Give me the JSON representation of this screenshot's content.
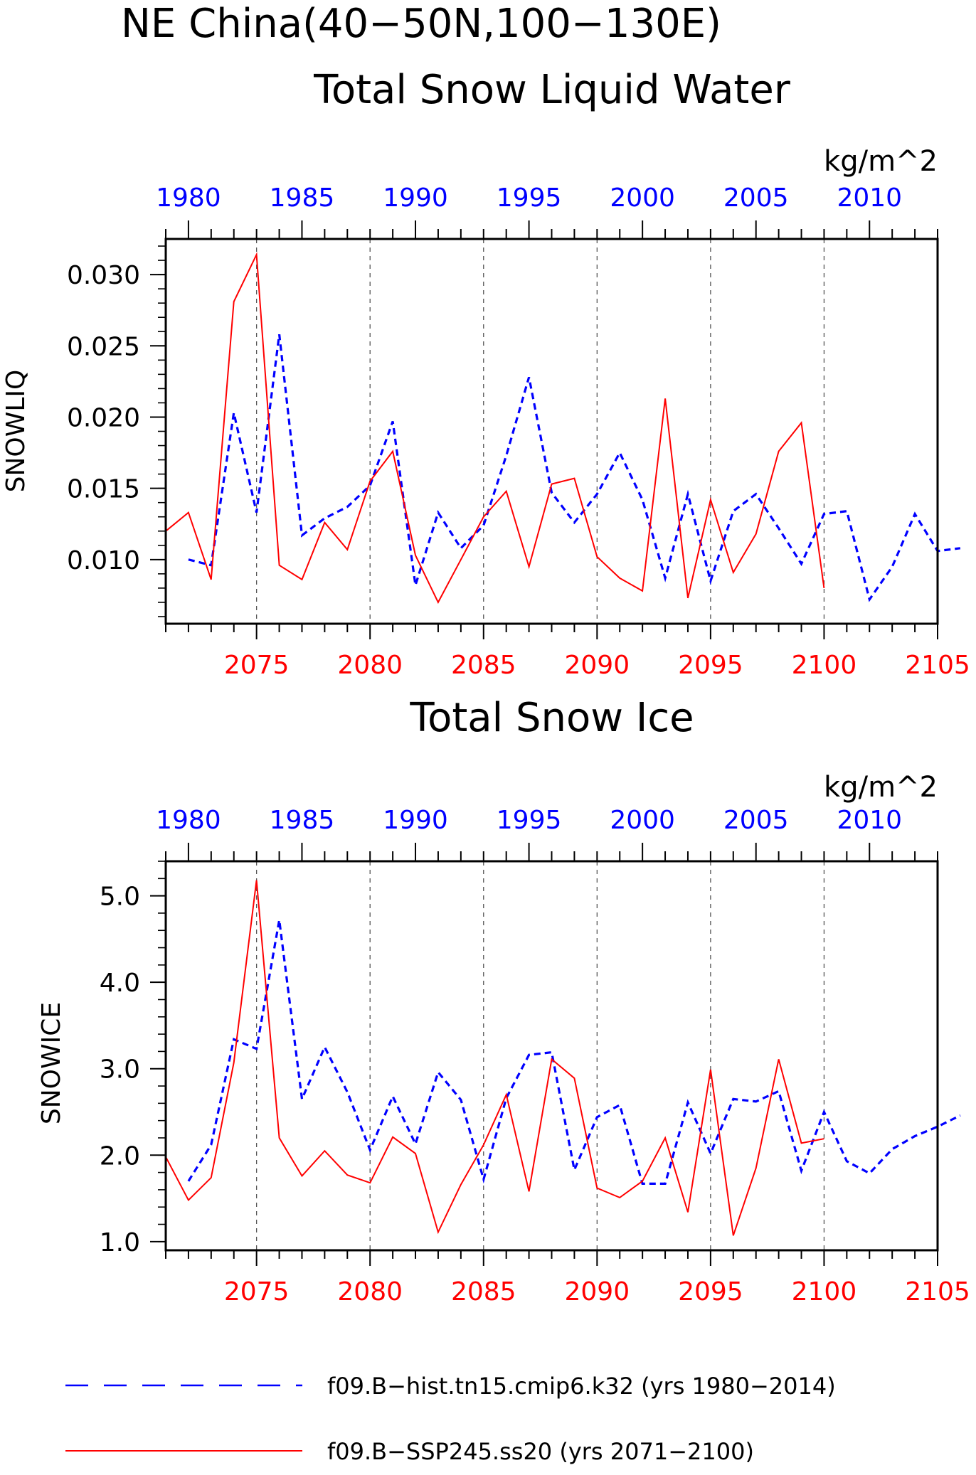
{
  "figure": {
    "title": "NE China(40−50N,100−130E)",
    "units": "kg/m^2",
    "colors": {
      "hist": "#0000ff",
      "ssp": "#ff0000",
      "axis": "#000000",
      "grid": "#555555"
    }
  },
  "chart_data": [
    {
      "type": "line",
      "title": "Total Snow Liquid Water",
      "ylabel": "SNOWLIQ",
      "units": "kg/m^2",
      "ylim": [
        0.0055,
        0.0325
      ],
      "yticks": [
        0.01,
        0.015,
        0.02,
        0.025,
        0.03
      ],
      "ytick_labels": [
        "0.010",
        "0.015",
        "0.020",
        "0.025",
        "0.030"
      ],
      "bottom_axis": {
        "xlim": [
          2071,
          2105
        ],
        "ticks": [
          2075,
          2080,
          2085,
          2090,
          2095,
          2100,
          2105
        ],
        "tick_labels": [
          "2075",
          "2080",
          "2085",
          "2090",
          "2095",
          "2100",
          "2105"
        ]
      },
      "top_axis": {
        "xlim": [
          1979,
          2013
        ],
        "ticks": [
          1980,
          1985,
          1990,
          1995,
          2000,
          2005,
          2010
        ],
        "tick_labels": [
          "1980",
          "1985",
          "1990",
          "1995",
          "2000",
          "2005",
          "2010"
        ]
      },
      "grid": "vertical dashed at 5-year ticks",
      "series": [
        {
          "name": "f09.B−hist.tn15.cmip6.k32 (yrs 1980−2014)",
          "style": "dashed",
          "x": [
            1980,
            1981,
            1982,
            1983,
            1984,
            1985,
            1986,
            1987,
            1988,
            1989,
            1990,
            1991,
            1992,
            1993,
            1994,
            1995,
            1996,
            1997,
            1998,
            1999,
            2000,
            2001,
            2002,
            2003,
            2004,
            2005,
            2006,
            2007,
            2008,
            2009,
            2010,
            2011,
            2012,
            2013,
            2014
          ],
          "y": [
            0.01,
            0.0096,
            0.0203,
            0.0133,
            0.0258,
            0.0117,
            0.0129,
            0.0137,
            0.0152,
            0.0197,
            0.0082,
            0.0133,
            0.0108,
            0.0124,
            0.0173,
            0.0228,
            0.0147,
            0.0126,
            0.0146,
            0.0175,
            0.0142,
            0.0087,
            0.0146,
            0.0085,
            0.0134,
            0.0146,
            0.0122,
            0.0097,
            0.0132,
            0.0134,
            0.0072,
            0.0095,
            0.0132,
            0.0106,
            0.0108
          ]
        },
        {
          "name": "f09.B−SSP245.ss20 (yrs 2071−2100)",
          "style": "solid",
          "x": [
            2071,
            2072,
            2073,
            2074,
            2075,
            2076,
            2077,
            2078,
            2079,
            2080,
            2081,
            2082,
            2083,
            2084,
            2085,
            2086,
            2087,
            2088,
            2089,
            2090,
            2091,
            2092,
            2093,
            2094,
            2095,
            2096,
            2097,
            2098,
            2099,
            2100
          ],
          "y": [
            0.012,
            0.0133,
            0.0086,
            0.0281,
            0.0314,
            0.0096,
            0.0086,
            0.0126,
            0.0107,
            0.0155,
            0.0176,
            0.0103,
            0.007,
            0.01,
            0.013,
            0.0148,
            0.0095,
            0.0153,
            0.0157,
            0.0102,
            0.0087,
            0.0078,
            0.0213,
            0.0073,
            0.0142,
            0.0091,
            0.0118,
            0.0176,
            0.0196,
            0.008
          ]
        }
      ]
    },
    {
      "type": "line",
      "title": "Total Snow Ice",
      "ylabel": "SNOWICE",
      "units": "kg/m^2",
      "ylim": [
        0.9,
        5.4
      ],
      "yticks": [
        1.0,
        2.0,
        3.0,
        4.0,
        5.0
      ],
      "ytick_labels": [
        "1.0",
        "2.0",
        "3.0",
        "4.0",
        "5.0"
      ],
      "bottom_axis": {
        "xlim": [
          2071,
          2105
        ],
        "ticks": [
          2075,
          2080,
          2085,
          2090,
          2095,
          2100,
          2105
        ],
        "tick_labels": [
          "2075",
          "2080",
          "2085",
          "2090",
          "2095",
          "2100",
          "2105"
        ]
      },
      "top_axis": {
        "xlim": [
          1979,
          2013
        ],
        "ticks": [
          1980,
          1985,
          1990,
          1995,
          2000,
          2005,
          2010
        ],
        "tick_labels": [
          "1980",
          "1985",
          "1990",
          "1995",
          "2000",
          "2005",
          "2010"
        ]
      },
      "grid": "vertical dashed at 5-year ticks",
      "series": [
        {
          "name": "f09.B−hist.tn15.cmip6.k32 (yrs 1980−2014)",
          "style": "dashed",
          "x": [
            1980,
            1981,
            1982,
            1983,
            1984,
            1985,
            1986,
            1987,
            1988,
            1989,
            1990,
            1991,
            1992,
            1993,
            1994,
            1995,
            1996,
            1997,
            1998,
            1999,
            2000,
            2001,
            2002,
            2003,
            2004,
            2005,
            2006,
            2007,
            2008,
            2009,
            2010,
            2011,
            2012,
            2013,
            2014
          ],
          "y": [
            1.7,
            2.12,
            3.34,
            3.23,
            4.72,
            2.65,
            3.25,
            2.73,
            2.06,
            2.68,
            2.13,
            2.96,
            2.64,
            1.72,
            2.66,
            3.16,
            3.19,
            1.83,
            2.44,
            2.58,
            1.67,
            1.67,
            2.61,
            2.02,
            2.65,
            2.62,
            2.74,
            1.82,
            2.5,
            1.93,
            1.79,
            2.07,
            2.22,
            2.33,
            2.46
          ]
        },
        {
          "name": "f09.B−SSP245.ss20 (yrs 2071−2100)",
          "style": "solid",
          "x": [
            2071,
            2072,
            2073,
            2074,
            2075,
            2076,
            2077,
            2078,
            2079,
            2080,
            2081,
            2082,
            2083,
            2084,
            2085,
            2086,
            2087,
            2088,
            2089,
            2090,
            2091,
            2092,
            2093,
            2094,
            2095,
            2096,
            2097,
            2098,
            2099,
            2100
          ],
          "y": [
            1.98,
            1.48,
            1.74,
            3.07,
            5.18,
            2.2,
            1.76,
            2.05,
            1.77,
            1.68,
            2.21,
            2.02,
            1.11,
            1.66,
            2.12,
            2.7,
            1.58,
            3.11,
            2.89,
            1.62,
            1.51,
            1.7,
            2.2,
            1.34,
            2.99,
            1.07,
            1.85,
            3.11,
            2.14,
            2.19
          ]
        }
      ]
    }
  ],
  "legend": {
    "hist_label": "f09.B−hist.tn15.cmip6.k32 (yrs 1980−2014)",
    "ssp_label": "f09.B−SSP245.ss20 (yrs 2071−2100)"
  }
}
